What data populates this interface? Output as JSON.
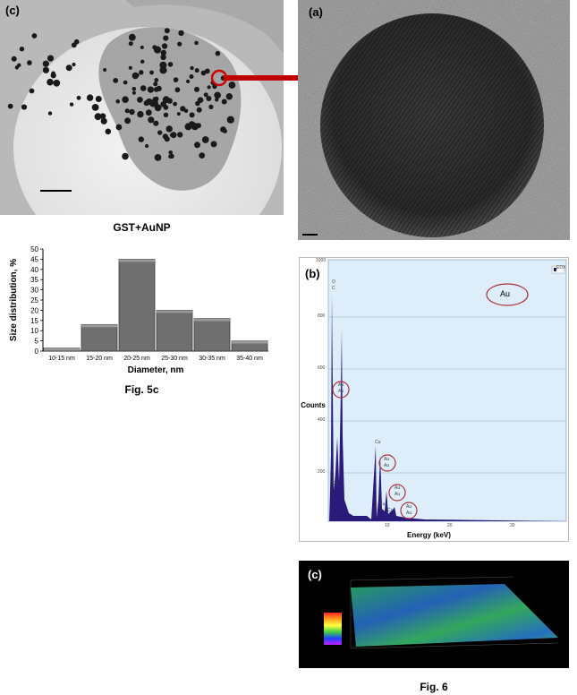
{
  "figure5": {
    "tem_panel_label": "(c)",
    "tem_caption": "GST+AuNP",
    "fig_caption": "Fig. 5c"
  },
  "figure6": {
    "hrtem_panel_label": "(a)",
    "eds_panel_label": "(b)",
    "afm_panel_label": "(c)",
    "fig_caption": "Fig. 6",
    "eds": {
      "legend": "EDX",
      "element_label": "Au",
      "x_label": "Energy (keV)",
      "y_label": "Counts",
      "x_ticks": [
        "10",
        "20",
        "30"
      ],
      "y_ticks": [
        "1000",
        "800",
        "600",
        "400",
        "200"
      ],
      "peak_labels": [
        "O",
        "C",
        "Au",
        "Au",
        "Cu",
        "Cu",
        "Au",
        "Au",
        "Cu",
        "Cu",
        "Au",
        "Au",
        "Au",
        "Au"
      ]
    }
  },
  "chart_data": {
    "type": "bar",
    "categories": [
      "10-15 nm",
      "15-20 nm",
      "20-25 nm",
      "25-30 nm",
      "30-35 nm",
      "35-40 nm"
    ],
    "values": [
      1.5,
      13,
      45,
      20,
      16,
      5
    ],
    "xlabel": "Diameter, nm",
    "ylabel": "Size distribution, %",
    "ylim": [
      0,
      50
    ],
    "yticks": [
      0,
      5,
      10,
      15,
      20,
      25,
      30,
      35,
      40,
      45,
      50
    ],
    "grid": false,
    "colors": {
      "bar": "#6f6f6f",
      "bar_top": "#9a9a9a"
    }
  }
}
